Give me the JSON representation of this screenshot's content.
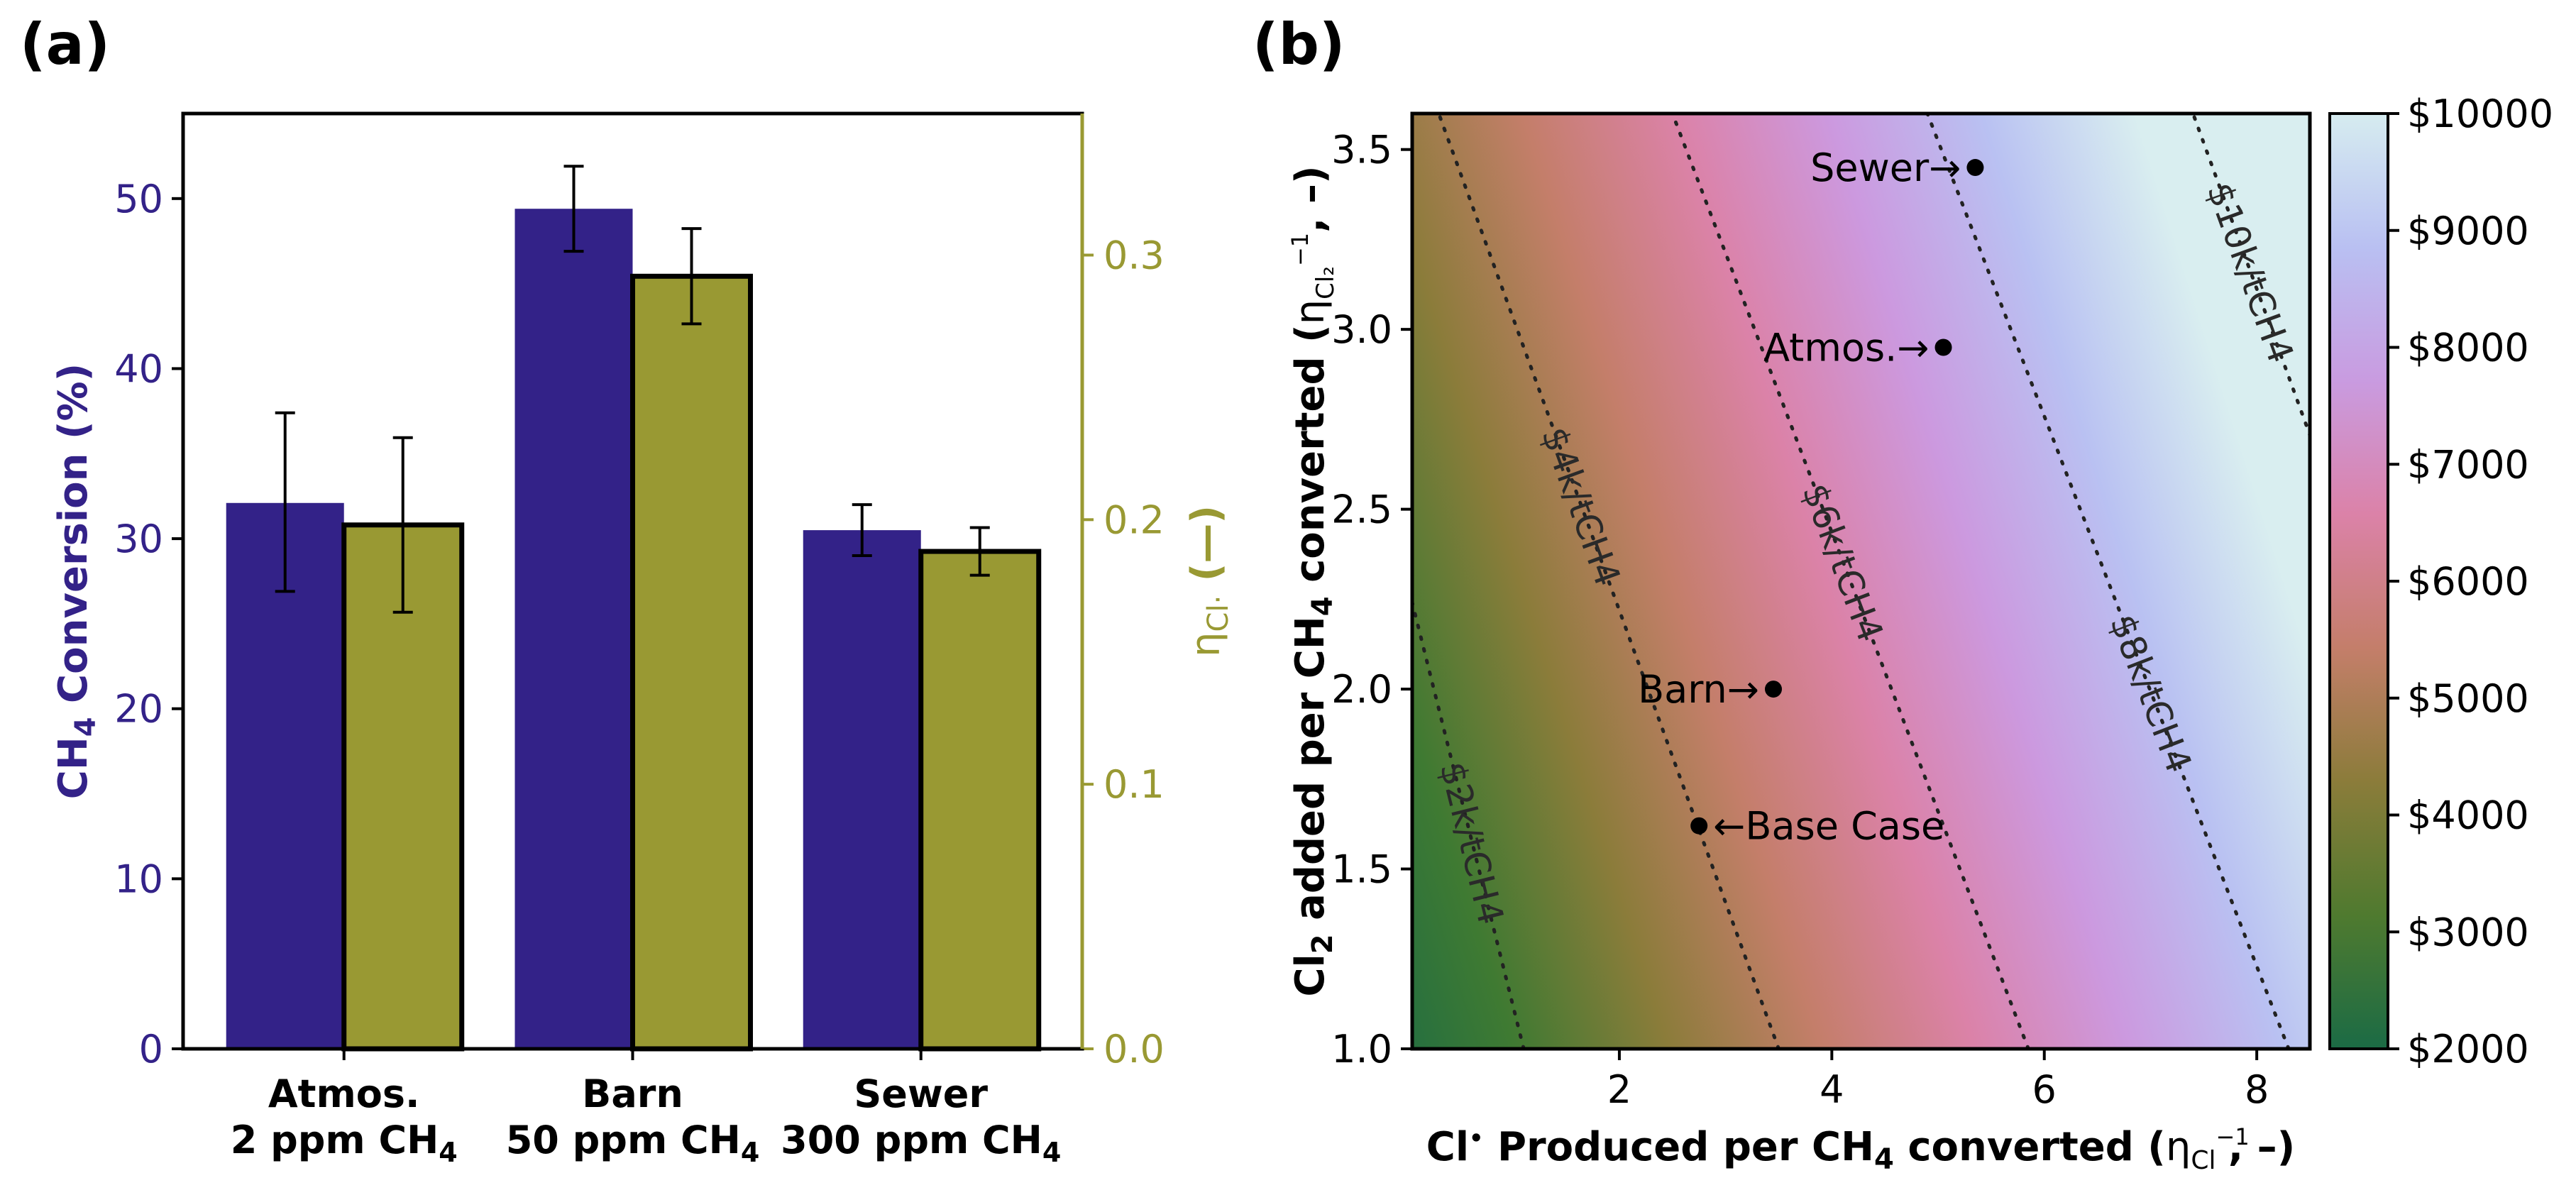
{
  "panel_a": {
    "label": "(a)",
    "ylabel_left_main": "CH",
    "ylabel_left_sub": "4",
    "ylabel_left_rest": " Conversion (%)",
    "ylabel_right": "ηCl· (—)",
    "ylabel_right_main": "η",
    "ylabel_right_sub": "Cl·",
    "ylabel_right_rest": " (—)",
    "xlabel_line2_suffix_sub": "4"
  },
  "panel_b": {
    "label": "(b)",
    "xlabel": "Cl· Produced per CH4 converted (ηCl·−1, –)",
    "ylabel": "Cl2 added per CH4 converted (ηCl2−1, –)"
  },
  "chart_data": [
    {
      "type": "bar",
      "categories": [
        "Atmos.\n2 ppm CH4",
        "Barn\n50 ppm CH4",
        "Sewer\n300 ppm CH4"
      ],
      "category_lines": [
        [
          "Atmos.",
          "2 ppm CH",
          "4"
        ],
        [
          "Barn",
          "50 ppm CH",
          "4"
        ],
        [
          "Sewer",
          "300 ppm CH",
          "4"
        ]
      ],
      "series": [
        {
          "name": "CH4 Conversion (%)",
          "axis": "left",
          "values": [
            32.1,
            49.4,
            30.5
          ],
          "err_low": [
            26.9,
            46.9,
            29.0
          ],
          "err_high": [
            37.4,
            51.9,
            32.0
          ],
          "color": "#332288"
        },
        {
          "name": "ηCl· (—)",
          "axis": "right",
          "values": [
            0.198,
            0.292,
            0.188
          ],
          "err_low": [
            0.165,
            0.274,
            0.179
          ],
          "err_high": [
            0.231,
            0.31,
            0.197
          ],
          "color": "#999933"
        }
      ],
      "ylim_left": [
        0,
        55
      ],
      "yticks_left": [
        "0",
        "10",
        "20",
        "30",
        "40",
        "50"
      ],
      "ylim_right": [
        0,
        0.3535
      ],
      "yticks_right": [
        "0.0",
        "0.1",
        "0.2",
        "0.3"
      ],
      "left_color": "#332288",
      "right_color": "#999933"
    },
    {
      "type": "heatmap",
      "xlim": [
        0.05,
        8.5
      ],
      "ylim": [
        1.0,
        3.6
      ],
      "xticks": [
        "2",
        "4",
        "6",
        "8"
      ],
      "yticks": [
        "1.0",
        "1.5",
        "2.0",
        "2.5",
        "3.0",
        "3.5"
      ],
      "colorbar": {
        "min": 2000,
        "max": 10000,
        "ticks": [
          "$2000",
          "$3000",
          "$4000",
          "$5000",
          "$6000",
          "$7000",
          "$8000",
          "$9000",
          "$10000"
        ],
        "stops": [
          "#1b6b45",
          "#4f7a2f",
          "#8b7c3a",
          "#c47e6a",
          "#db82a8",
          "#c99be0",
          "#b9c0f2",
          "#d6ecf0"
        ]
      },
      "contours": [
        {
          "label": "$2k/tCH4",
          "x_bottom": 1.1,
          "x_top": -1.1
        },
        {
          "label": "$4k/tCH4",
          "x_bottom": 3.5,
          "x_top": 0.3
        },
        {
          "label": "$6k/tCH4",
          "x_bottom": 5.85,
          "x_top": 2.5
        },
        {
          "label": "$8k/tCH4",
          "x_bottom": 8.3,
          "x_top": 4.9
        },
        {
          "label": "$10k/tCH4",
          "x_bottom": 10.6,
          "x_top": 7.4
        }
      ],
      "points": [
        {
          "label": "Sewer→",
          "x": 5.35,
          "y": 3.45
        },
        {
          "label": "Atmos.→",
          "x": 5.05,
          "y": 2.95
        },
        {
          "label": "Barn→",
          "x": 3.45,
          "y": 2.0
        },
        {
          "label": "←Base Case",
          "x": 2.75,
          "y": 1.62
        }
      ]
    }
  ]
}
